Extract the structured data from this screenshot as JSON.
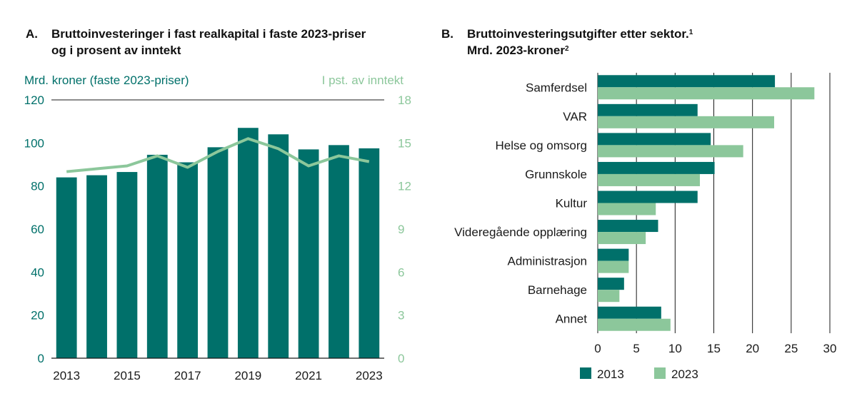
{
  "panels": {
    "a": {
      "letter": "A.",
      "title_line1": "Bruttoinvesteringer i fast realkapital i faste 2023-priser",
      "title_line2": "og i prosent av inntekt"
    },
    "b": {
      "letter": "B.",
      "title_line1": "Bruttoinvesteringsutgifter etter sektor.",
      "title_line1_sup": "1",
      "title_line2": "Mrd. 2023-kroner",
      "title_line2_sup": "2"
    }
  },
  "colors": {
    "dark": "#00706a",
    "light": "#8cc79b",
    "axis": "#1a1a1a",
    "grid": "#1a1a1a"
  },
  "chart_data": [
    {
      "type": "bar",
      "title": "Bruttoinvesteringer i fast realkapital i faste 2023-priser og i prosent av inntekt",
      "ylabel": "Mrd. kroner (faste 2023-priser)",
      "y2label": "I pst. av inntekt",
      "ylim": [
        0,
        120
      ],
      "y2lim": [
        0,
        18
      ],
      "yticks": [
        "0",
        "20",
        "40",
        "60",
        "80",
        "100",
        "120"
      ],
      "y2ticks": [
        "0",
        "3",
        "6",
        "9",
        "12",
        "15",
        "18"
      ],
      "categories": [
        "2013",
        "2014",
        "2015",
        "2016",
        "2017",
        "2018",
        "2019",
        "2020",
        "2021",
        "2022",
        "2023"
      ],
      "xticklabels": [
        "2013",
        "2015",
        "2017",
        "2019",
        "2021",
        "2023"
      ],
      "series": [
        {
          "name": "Mrd. kroner (faste 2023-priser)",
          "type": "bar",
          "axis": "left",
          "values": [
            84,
            85,
            86.5,
            94.5,
            91,
            98,
            107,
            104,
            97,
            99,
            97.5
          ]
        },
        {
          "name": "I pst. av inntekt",
          "type": "line",
          "axis": "right",
          "values": [
            13.0,
            13.2,
            13.4,
            14.1,
            13.3,
            14.4,
            15.3,
            14.6,
            13.4,
            14.1,
            13.7
          ]
        }
      ],
      "grid": false
    },
    {
      "type": "bar",
      "orientation": "horizontal",
      "title": "Bruttoinvesteringsutgifter etter sektor. Mrd. 2023-kroner",
      "categories": [
        "Samferdsel",
        "VAR",
        "Helse og omsorg",
        "Grunnskole",
        "Kultur",
        "Videregående opplæring",
        "Administrasjon",
        "Barnehage",
        "Annet"
      ],
      "xlim": [
        0,
        30
      ],
      "xticks": [
        "0",
        "5",
        "10",
        "15",
        "20",
        "25",
        "30"
      ],
      "series": [
        {
          "name": "2013",
          "values": [
            22.9,
            12.9,
            14.6,
            15.1,
            12.9,
            7.8,
            4.0,
            3.4,
            8.2
          ]
        },
        {
          "name": "2023",
          "values": [
            28.0,
            22.8,
            18.8,
            13.2,
            7.5,
            6.2,
            4.0,
            2.8,
            9.4
          ]
        }
      ],
      "legend": [
        "2013",
        "2023"
      ],
      "legend_position": "bottom",
      "grid": true
    }
  ]
}
